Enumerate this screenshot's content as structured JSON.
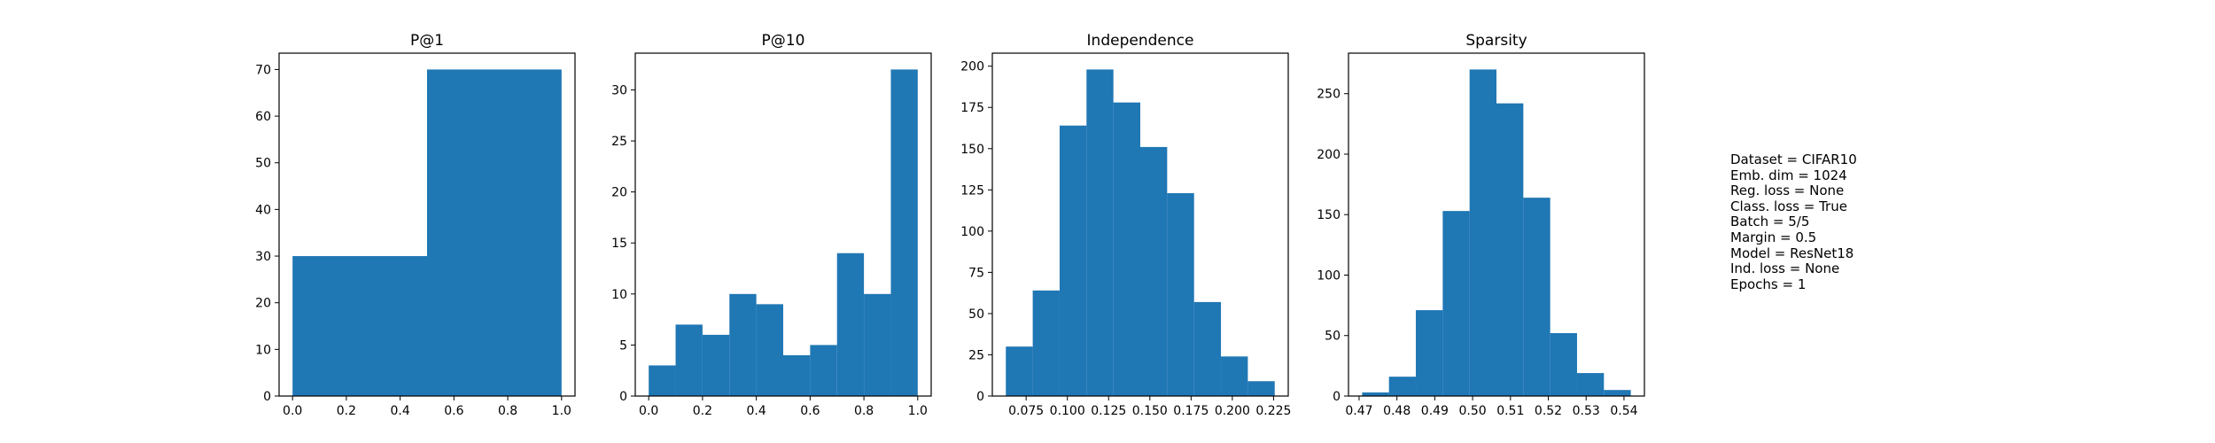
{
  "chart_data": [
    {
      "type": "bar",
      "title": "P@1",
      "bar_color": "#1f77b4",
      "bins": [
        [
          0.0,
          0.5
        ],
        [
          0.5,
          1.0
        ]
      ],
      "values": [
        30,
        70
      ],
      "xlim": [
        -0.05,
        1.05
      ],
      "ylim": [
        0,
        73.5
      ],
      "xticks": [
        0.0,
        0.2,
        0.4,
        0.6,
        0.8,
        1.0
      ],
      "xtick_labels": [
        "0.0",
        "0.2",
        "0.4",
        "0.6",
        "0.8",
        "1.0"
      ],
      "yticks": [
        0,
        10,
        20,
        30,
        40,
        50,
        60,
        70
      ],
      "ytick_labels": [
        "0",
        "10",
        "20",
        "30",
        "40",
        "50",
        "60",
        "70"
      ]
    },
    {
      "type": "bar",
      "title": "P@10",
      "bar_color": "#1f77b4",
      "bins": [
        [
          0.0,
          0.1
        ],
        [
          0.1,
          0.2
        ],
        [
          0.2,
          0.3
        ],
        [
          0.3,
          0.4
        ],
        [
          0.4,
          0.5
        ],
        [
          0.5,
          0.6
        ],
        [
          0.6,
          0.7
        ],
        [
          0.7,
          0.8
        ],
        [
          0.8,
          0.9
        ],
        [
          0.9,
          1.0
        ]
      ],
      "values": [
        3,
        7,
        6,
        10,
        9,
        4,
        5,
        14,
        10,
        32
      ],
      "xlim": [
        -0.05,
        1.05
      ],
      "ylim": [
        0,
        33.6
      ],
      "xticks": [
        0.0,
        0.2,
        0.4,
        0.6,
        0.8,
        1.0
      ],
      "xtick_labels": [
        "0.0",
        "0.2",
        "0.4",
        "0.6",
        "0.8",
        "1.0"
      ],
      "yticks": [
        0,
        5,
        10,
        15,
        20,
        25,
        30
      ],
      "ytick_labels": [
        "0",
        "5",
        "10",
        "15",
        "20",
        "25",
        "30"
      ]
    },
    {
      "type": "bar",
      "title": "Independence",
      "bar_color": "#1f77b4",
      "bins": [
        [
          0.0627,
          0.079
        ],
        [
          0.079,
          0.0953
        ],
        [
          0.0953,
          0.1116
        ],
        [
          0.1116,
          0.1279
        ],
        [
          0.1279,
          0.1442
        ],
        [
          0.1442,
          0.1605
        ],
        [
          0.1605,
          0.1768
        ],
        [
          0.1768,
          0.1931
        ],
        [
          0.1931,
          0.2094
        ],
        [
          0.2094,
          0.2257
        ]
      ],
      "values": [
        30,
        64,
        164,
        198,
        178,
        151,
        123,
        57,
        24,
        9
      ],
      "xlim": [
        0.0545,
        0.2339
      ],
      "ylim": [
        0,
        207.9
      ],
      "xticks": [
        0.075,
        0.1,
        0.125,
        0.15,
        0.175,
        0.2,
        0.225
      ],
      "xtick_labels": [
        "0.075",
        "0.100",
        "0.125",
        "0.150",
        "0.175",
        "0.200",
        "0.225"
      ],
      "yticks": [
        0,
        25,
        50,
        75,
        100,
        125,
        150,
        175,
        200
      ],
      "ytick_labels": [
        "0",
        "25",
        "50",
        "75",
        "100",
        "125",
        "150",
        "175",
        "200"
      ]
    },
    {
      "type": "bar",
      "title": "Sparsity",
      "bar_color": "#1f77b4",
      "bins": [
        [
          0.4708,
          0.4779
        ],
        [
          0.4779,
          0.485
        ],
        [
          0.485,
          0.4921
        ],
        [
          0.4921,
          0.4992
        ],
        [
          0.4992,
          0.5063
        ],
        [
          0.5063,
          0.5134
        ],
        [
          0.5134,
          0.5205
        ],
        [
          0.5205,
          0.5276
        ],
        [
          0.5276,
          0.5347
        ],
        [
          0.5347,
          0.5418
        ]
      ],
      "values": [
        3,
        16,
        71,
        153,
        270,
        242,
        164,
        52,
        19,
        5
      ],
      "xlim": [
        0.4672,
        0.5454
      ],
      "ylim": [
        0,
        283.5
      ],
      "xticks": [
        0.47,
        0.48,
        0.49,
        0.5,
        0.51,
        0.52,
        0.53,
        0.54
      ],
      "xtick_labels": [
        "0.47",
        "0.48",
        "0.49",
        "0.50",
        "0.51",
        "0.52",
        "0.53",
        "0.54"
      ],
      "yticks": [
        0,
        50,
        100,
        150,
        200,
        250
      ],
      "ytick_labels": [
        "0",
        "50",
        "100",
        "150",
        "200",
        "250"
      ]
    }
  ],
  "info_lines": [
    "Dataset = CIFAR10",
    "Emb. dim = 1024",
    "Reg. loss = None",
    "Class. loss = True",
    "Batch = 5/5",
    "Margin = 0.5",
    "Model = ResNet18",
    "Ind. loss = None",
    "Epochs = 1"
  ]
}
